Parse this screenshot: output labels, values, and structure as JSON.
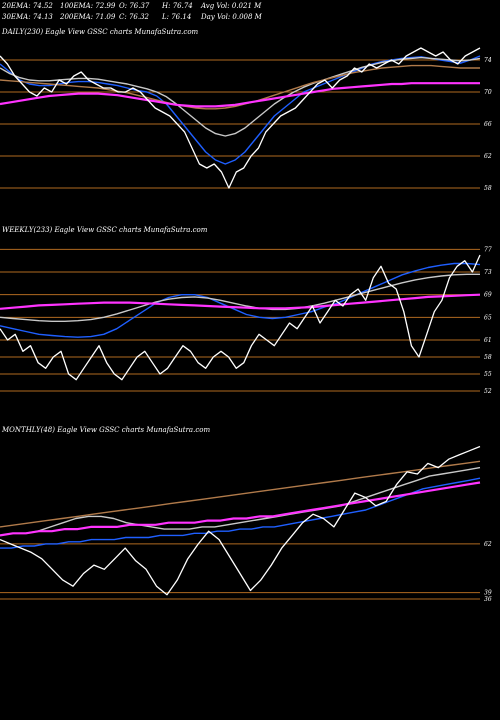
{
  "header": {
    "row1": [
      "20EMA: 74.52",
      "100EMA: 72.99",
      "O: 76.37",
      "H: 76.74",
      "Avg Vol: 0.021  M"
    ],
    "row2": [
      "30EMA: 74.13",
      "200EMA: 71.09",
      "C: 76.32",
      "L: 76.14",
      "Day Vol: 0.008  M"
    ]
  },
  "colors": {
    "background": "#000000",
    "price": "#ffffff",
    "ema_fast": "#1f5fff",
    "ema_slow": "#ff33ff",
    "ema_mid": "#c8c8c8",
    "ema_brown": "#b07a4a",
    "gridline": "#b06a20"
  },
  "chart_data": [
    {
      "type": "line",
      "title": "DAILY(230) Eagle   View  GSSC charts MunafaSutra.com",
      "grid": "horizontal",
      "tick_labels": [
        "74",
        "70",
        "66",
        "62",
        "58"
      ],
      "ticks": [
        74,
        70,
        66,
        62,
        58
      ],
      "ylim": [
        56.5,
        76.5
      ],
      "series": [
        {
          "name": "price",
          "color": "#ffffff",
          "values": [
            74.5,
            73.5,
            72.0,
            71.0,
            70.0,
            69.5,
            70.5,
            70.0,
            71.5,
            71.0,
            72.0,
            72.5,
            71.5,
            71.0,
            70.5,
            70.5,
            70.0,
            70.0,
            70.5,
            70.0,
            69.0,
            68.0,
            67.5,
            67.0,
            66.0,
            65.0,
            63.0,
            61.0,
            60.5,
            61.0,
            60.0,
            58.0,
            60.0,
            60.5,
            62.0,
            63.0,
            65.0,
            66.0,
            67.0,
            67.5,
            68.0,
            69.0,
            70.0,
            71.0,
            71.5,
            70.5,
            71.5,
            72.0,
            73.0,
            72.5,
            73.5,
            73.0,
            73.5,
            74.0,
            73.5,
            74.5,
            75.0,
            75.5,
            75.0,
            74.5,
            75.0,
            74.0,
            73.5,
            74.5,
            75.0,
            75.5
          ]
        },
        {
          "name": "EMA 20",
          "color": "#1f5fff",
          "values": [
            73.5,
            72.5,
            71.5,
            71.0,
            70.8,
            70.8,
            71.0,
            71.2,
            71.3,
            71.3,
            71.2,
            71.0,
            70.8,
            70.5,
            70.2,
            70.0,
            69.5,
            68.5,
            67.0,
            65.5,
            64.0,
            62.5,
            61.5,
            61.0,
            61.5,
            62.5,
            64.0,
            65.5,
            67.0,
            68.0,
            69.0,
            70.0,
            70.5,
            71.0,
            71.5,
            72.0,
            72.5,
            73.0,
            73.5,
            73.8,
            74.0,
            74.2,
            74.3,
            74.4,
            74.2,
            74.0,
            73.8,
            73.6,
            74.0,
            74.5
          ]
        },
        {
          "name": "EMA 30",
          "color": "#c8c8c8",
          "values": [
            73.0,
            72.3,
            71.8,
            71.5,
            71.4,
            71.4,
            71.5,
            71.6,
            71.7,
            71.7,
            71.6,
            71.4,
            71.2,
            71.0,
            70.7,
            70.4,
            70.0,
            69.4,
            68.5,
            67.5,
            66.5,
            65.5,
            64.8,
            64.5,
            64.8,
            65.5,
            66.5,
            67.5,
            68.5,
            69.3,
            70.0,
            70.6,
            71.1,
            71.5,
            71.9,
            72.3,
            72.7,
            73.1,
            73.4,
            73.7,
            73.9,
            74.1,
            74.2,
            74.3,
            74.2,
            74.1,
            74.0,
            73.9,
            74.0,
            74.2
          ]
        },
        {
          "name": "EMA 100",
          "color": "#b07a4a",
          "values": [
            71.5,
            71.4,
            71.3,
            71.2,
            71.1,
            71.0,
            70.9,
            70.8,
            70.7,
            70.6,
            70.5,
            70.3,
            70.1,
            69.9,
            69.6,
            69.3,
            69.0,
            68.7,
            68.4,
            68.2,
            68.0,
            67.9,
            67.9,
            68.0,
            68.2,
            68.5,
            68.8,
            69.2,
            69.6,
            70.0,
            70.4,
            70.8,
            71.2,
            71.5,
            71.8,
            72.1,
            72.4,
            72.6,
            72.8,
            73.0,
            73.1,
            73.2,
            73.3,
            73.3,
            73.3,
            73.2,
            73.1,
            73.0,
            73.0,
            73.0
          ]
        },
        {
          "name": "EMA 200",
          "color": "#ff33ff",
          "values": [
            68.5,
            68.7,
            68.9,
            69.1,
            69.3,
            69.5,
            69.6,
            69.7,
            69.8,
            69.8,
            69.8,
            69.7,
            69.6,
            69.4,
            69.2,
            69.0,
            68.8,
            68.6,
            68.4,
            68.3,
            68.2,
            68.2,
            68.2,
            68.3,
            68.4,
            68.6,
            68.8,
            69.0,
            69.2,
            69.4,
            69.6,
            69.8,
            70.0,
            70.2,
            70.4,
            70.5,
            70.6,
            70.7,
            70.8,
            70.9,
            71.0,
            71.0,
            71.1,
            71.1,
            71.1,
            71.1,
            71.1,
            71.1,
            71.1,
            71.1
          ]
        }
      ]
    },
    {
      "type": "line",
      "title": "WEEKLY(233) Eagle   View  GSSC charts MunafaSutra.com",
      "grid": "horizontal",
      "tick_labels": [
        "77",
        "73",
        "69",
        "65",
        "61",
        "58",
        "55",
        "52"
      ],
      "ticks": [
        77,
        73,
        69,
        65,
        61,
        58,
        55,
        52
      ],
      "ylim": [
        49,
        79
      ],
      "series": [
        {
          "name": "price",
          "color": "#ffffff",
          "values": [
            63,
            61,
            62,
            59,
            60,
            57,
            56,
            58,
            59,
            55,
            54,
            56,
            58,
            60,
            57,
            55,
            54,
            56,
            58,
            59,
            57,
            55,
            56,
            58,
            60,
            59,
            57,
            56,
            58,
            59,
            58,
            56,
            57,
            60,
            62,
            61,
            60,
            62,
            64,
            63,
            65,
            67,
            64,
            66,
            68,
            67,
            69,
            70,
            68,
            72,
            74,
            71,
            70,
            66,
            60,
            58,
            62,
            66,
            68,
            72,
            74,
            75,
            73,
            76
          ]
        },
        {
          "name": "EMA 20",
          "color": "#1f5fff",
          "values": [
            63.5,
            63.0,
            62.5,
            62.0,
            61.8,
            61.6,
            61.5,
            61.6,
            62.0,
            63.0,
            64.5,
            66.0,
            67.5,
            68.5,
            69.0,
            69.0,
            68.5,
            67.5,
            66.5,
            65.5,
            65.0,
            64.8,
            65.0,
            65.5,
            66.0,
            66.8,
            67.5,
            68.5,
            69.5,
            70.5,
            71.5,
            72.5,
            73.2,
            73.8,
            74.2,
            74.5,
            74.5,
            74.3
          ]
        },
        {
          "name": "EMA 30",
          "color": "#c8c8c8",
          "values": [
            65.0,
            64.8,
            64.6,
            64.4,
            64.3,
            64.3,
            64.4,
            64.6,
            65.0,
            65.6,
            66.3,
            67.0,
            67.7,
            68.2,
            68.5,
            68.6,
            68.4,
            68.0,
            67.5,
            67.0,
            66.6,
            66.4,
            66.4,
            66.6,
            67.0,
            67.5,
            68.1,
            68.7,
            69.3,
            69.9,
            70.5,
            71.1,
            71.6,
            72.0,
            72.3,
            72.5,
            72.6,
            72.6
          ]
        },
        {
          "name": "EMA 200",
          "color": "#ff33ff",
          "values": [
            66.5,
            66.7,
            66.9,
            67.1,
            67.2,
            67.3,
            67.4,
            67.5,
            67.6,
            67.6,
            67.6,
            67.5,
            67.4,
            67.3,
            67.2,
            67.1,
            67.0,
            66.9,
            66.8,
            66.7,
            66.6,
            66.6,
            66.6,
            66.7,
            66.8,
            67.0,
            67.2,
            67.4,
            67.6,
            67.8,
            68.0,
            68.2,
            68.4,
            68.6,
            68.7,
            68.8,
            68.9,
            69.0
          ]
        }
      ]
    },
    {
      "type": "line",
      "title": "MONTHLY(48) Eagle   View  GSSC charts MunafaSutra.com",
      "grid": "horizontal",
      "tick_labels": [
        "62",
        "39",
        "36"
      ],
      "ticks": [
        62,
        39,
        36
      ],
      "ylim": [
        27,
        112
      ],
      "series": [
        {
          "name": "price",
          "color": "#ffffff",
          "values": [
            64,
            62,
            60,
            58,
            55,
            50,
            45,
            42,
            48,
            52,
            50,
            55,
            60,
            54,
            50,
            42,
            38,
            45,
            55,
            62,
            68,
            64,
            56,
            48,
            40,
            45,
            52,
            60,
            66,
            72,
            76,
            74,
            70,
            78,
            86,
            84,
            80,
            82,
            90,
            96,
            95,
            100,
            98,
            102,
            104,
            106,
            108
          ]
        },
        {
          "name": "EMA 20",
          "color": "#1f5fff",
          "values": [
            60,
            60,
            61,
            61,
            62,
            62,
            63,
            63,
            64,
            64,
            64,
            65,
            65,
            65,
            66,
            66,
            66,
            67,
            67,
            68,
            68,
            69,
            69,
            70,
            70,
            71,
            72,
            73,
            74,
            75,
            76,
            77,
            78,
            80,
            82,
            84,
            86,
            88,
            89,
            90,
            91,
            92,
            93
          ]
        },
        {
          "name": "EMA 30",
          "color": "#c8c8c8",
          "values": [
            66,
            67,
            67,
            68,
            70,
            72,
            74,
            75,
            75,
            74,
            72,
            71,
            70,
            69,
            69,
            69,
            70,
            70,
            71,
            72,
            73,
            74,
            75,
            76,
            77,
            78,
            79,
            80,
            82,
            84,
            86,
            88,
            90,
            92,
            94,
            95,
            96,
            97,
            98
          ]
        },
        {
          "name": "EMA 100",
          "color": "#b07a4a",
          "values": [
            70,
            71,
            72,
            73,
            74,
            75,
            76,
            77,
            78,
            79,
            80,
            81,
            82,
            83,
            84,
            85,
            86,
            87,
            88,
            89,
            90,
            91,
            92,
            93,
            94,
            95,
            96,
            97,
            98,
            99,
            100,
            101
          ]
        },
        {
          "name": "EMA 200",
          "color": "#ff33ff",
          "values": [
            66,
            67,
            67,
            68,
            68,
            69,
            69,
            70,
            70,
            70,
            71,
            71,
            71,
            72,
            72,
            72,
            73,
            73,
            74,
            74,
            75,
            75,
            76,
            77,
            78,
            79,
            80,
            81,
            82,
            83,
            84,
            85,
            86,
            87,
            88,
            89,
            90,
            91
          ]
        }
      ]
    }
  ]
}
